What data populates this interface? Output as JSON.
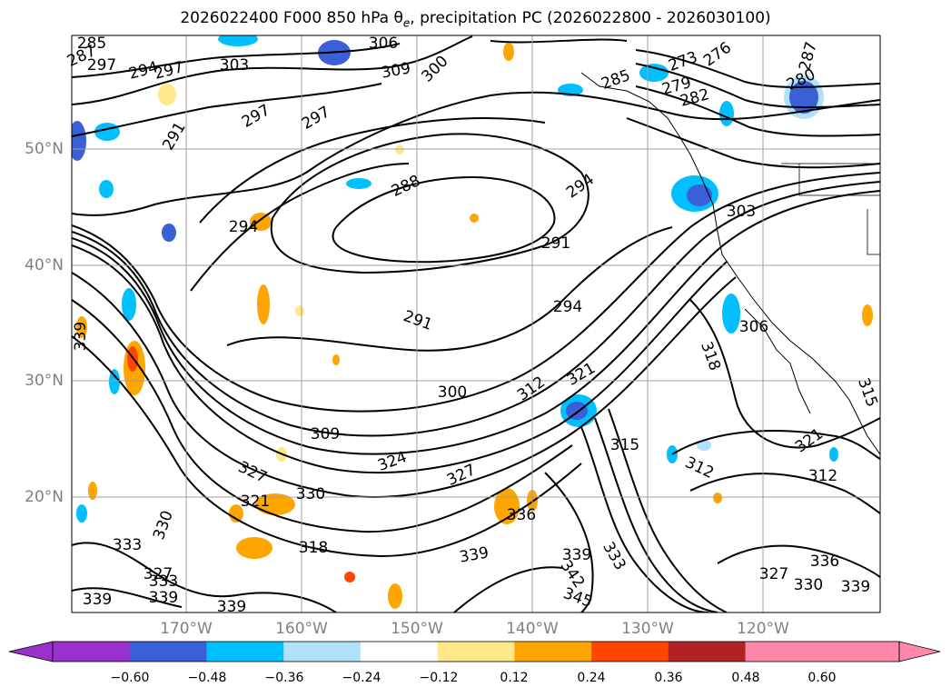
{
  "title_text": "2026022400 F000 850 hPa θ",
  "title_sub": "e",
  "title_rest": ", precipitation PC (2026022800 - 2026030100)",
  "lat_labels": [
    "50°N",
    "40°N",
    "30°N",
    "20°N"
  ],
  "lon_labels": [
    "170°W",
    "160°W",
    "150°W",
    "140°W",
    "130°W",
    "120°W"
  ],
  "contour_labels": [
    "285",
    "287",
    "297",
    "294",
    "297",
    "303",
    "306",
    "309",
    "300",
    "273",
    "276",
    "279",
    "282",
    "285",
    "280",
    "287",
    "297",
    "297",
    "291",
    "288",
    "294",
    "294",
    "291",
    "294",
    "291",
    "303",
    "306",
    "318",
    "315",
    "312",
    "321",
    "300",
    "312",
    "321",
    "309",
    "324",
    "327",
    "321",
    "327",
    "330",
    "336",
    "315",
    "312",
    "318",
    "333",
    "339",
    "339",
    "333",
    "342",
    "345",
    "327",
    "330",
    "336",
    "339",
    "330",
    "327",
    "333",
    "339",
    "339",
    "339",
    "339"
  ],
  "colorbar": {
    "ticks": [
      "−0.60",
      "−0.48",
      "−0.36",
      "−0.24",
      "−0.12",
      "0.12",
      "0.24",
      "0.36",
      "0.48",
      "0.60"
    ],
    "colors": [
      "#9932cc",
      "#00008b",
      "#3b5fd6",
      "#00bfff",
      "#b0e0fa",
      "#ffffff",
      "#ffe88a",
      "#ffa500",
      "#ff4500",
      "#b22222",
      "#ff88aa",
      "#ff88aa"
    ]
  },
  "shading_colors": {
    "light_blue": "#b0e0fa",
    "blue": "#00bfff",
    "royal": "#3b5fd6",
    "navy": "#00008b",
    "yellow": "#ffe88a",
    "orange": "#ffa500",
    "red": "#ff4500"
  }
}
